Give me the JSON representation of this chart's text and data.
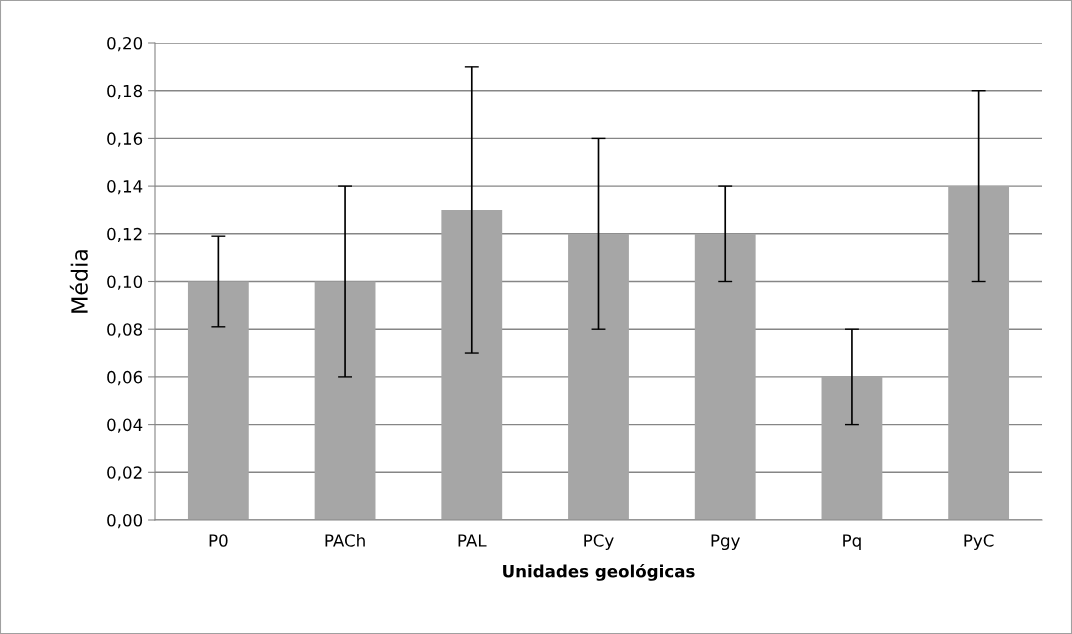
{
  "chart_data": {
    "type": "bar",
    "xlabel": "Unidades geológicas",
    "ylabel": "Média",
    "categories": [
      "P0",
      "PACh",
      "PAL",
      "PCy",
      "Pgy",
      "Pq",
      "PyC"
    ],
    "values": [
      0.1,
      0.1,
      0.13,
      0.12,
      0.12,
      0.06,
      0.14
    ],
    "errors": [
      0.019,
      0.04,
      0.06,
      0.04,
      0.02,
      0.02,
      0.04
    ],
    "color": "#a6a6a6",
    "ylim": [
      0,
      0.2
    ],
    "yticks": [
      {
        "value": 0,
        "label": "0,00"
      },
      {
        "value": 0.02,
        "label": "0,02"
      },
      {
        "value": 0.04,
        "label": "0,04"
      },
      {
        "value": 0.06,
        "label": "0,06"
      },
      {
        "value": 0.08,
        "label": "0,08"
      },
      {
        "value": 0.1,
        "label": "0,10"
      },
      {
        "value": 0.12,
        "label": "0,12"
      },
      {
        "value": 0.14,
        "label": "0,14"
      },
      {
        "value": 0.16,
        "label": "0,16"
      },
      {
        "value": 0.18,
        "label": "0,18"
      },
      {
        "value": 0.2,
        "label": "0,20"
      }
    ],
    "grid": "y"
  }
}
